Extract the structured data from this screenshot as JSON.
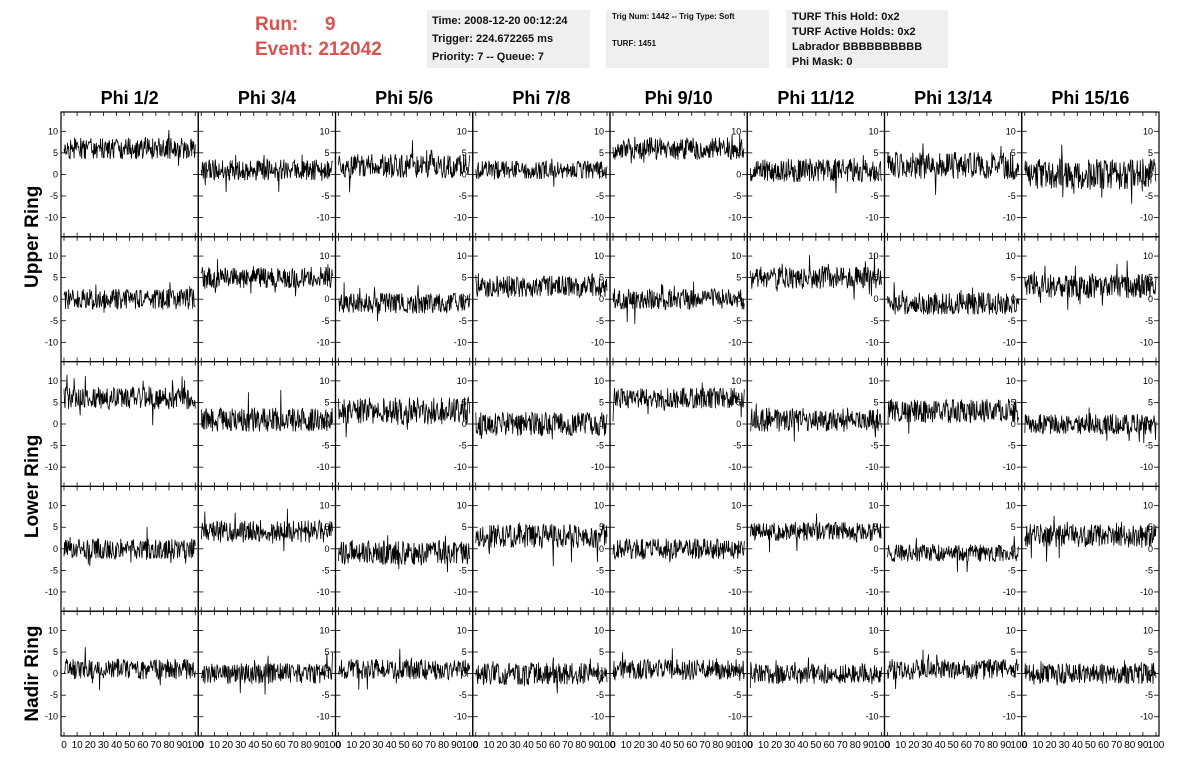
{
  "header": {
    "run_label": "Run:",
    "run_value": "9",
    "event_label": "Event:",
    "event_value": "212042",
    "time": "Time: 2008-12-20 00:12:24",
    "trigger": "Trigger: 224.672265 ms",
    "priority": "Priority: 7 -- Queue: 7",
    "trig_num": "Trig Num: 1442 -- Trig Type: Soft",
    "turf": "TURF: 1451",
    "turf_this_hold": "TURF This Hold: 0x2",
    "turf_active_holds": "TURF Active Holds: 0x2",
    "labrador": "Labrador BBBBBBBBBB",
    "phi_mask": "Phi Mask: 0"
  },
  "colors": {
    "run_event": "#d9534f",
    "box_bg": "#efefef",
    "trace": "#000000"
  },
  "chart_data": {
    "type": "line",
    "columns": [
      "Phi 1/2",
      "Phi 3/4",
      "Phi 5/6",
      "Phi 7/8",
      "Phi 9/10",
      "Phi 11/12",
      "Phi 13/14",
      "Phi 15/16"
    ],
    "ring_labels": [
      "Upper Ring",
      "Lower Ring",
      "Nadir Ring"
    ],
    "rows": 5,
    "xlim": [
      0,
      100
    ],
    "ylim": [
      -14,
      14
    ],
    "yticks": [
      -10,
      -5,
      0,
      5,
      10
    ],
    "xticks": [
      0,
      10,
      20,
      30,
      40,
      50,
      60,
      70,
      80,
      90,
      100
    ],
    "xtick_labels": [
      "0",
      "10",
      "20",
      "30",
      "40",
      "50",
      "60",
      "70",
      "80",
      "90",
      "100"
    ],
    "points_per_trace": 260,
    "traces": [
      {
        "row": 0,
        "col": 0,
        "mean": 6,
        "amp": 2.5,
        "seed": 11
      },
      {
        "row": 0,
        "col": 1,
        "mean": 1,
        "amp": 2.5,
        "seed": 12
      },
      {
        "row": 0,
        "col": 2,
        "mean": 2,
        "amp": 2.8,
        "seed": 13
      },
      {
        "row": 0,
        "col": 3,
        "mean": 1,
        "amp": 2.2,
        "seed": 14
      },
      {
        "row": 0,
        "col": 4,
        "mean": 6,
        "amp": 2.6,
        "seed": 15
      },
      {
        "row": 0,
        "col": 5,
        "mean": 1,
        "amp": 2.8,
        "seed": 16
      },
      {
        "row": 0,
        "col": 6,
        "mean": 2,
        "amp": 3.2,
        "seed": 17
      },
      {
        "row": 0,
        "col": 7,
        "mean": 0,
        "amp": 3.6,
        "seed": 18
      },
      {
        "row": 1,
        "col": 0,
        "mean": 0,
        "amp": 2.4,
        "seed": 21
      },
      {
        "row": 1,
        "col": 1,
        "mean": 5,
        "amp": 2.5,
        "seed": 22
      },
      {
        "row": 1,
        "col": 2,
        "mean": -1,
        "amp": 2.4,
        "seed": 23
      },
      {
        "row": 1,
        "col": 3,
        "mean": 3,
        "amp": 2.6,
        "seed": 24
      },
      {
        "row": 1,
        "col": 4,
        "mean": 0,
        "amp": 2.4,
        "seed": 25
      },
      {
        "row": 1,
        "col": 5,
        "mean": 5,
        "amp": 2.6,
        "seed": 26
      },
      {
        "row": 1,
        "col": 6,
        "mean": -1,
        "amp": 2.6,
        "seed": 27
      },
      {
        "row": 1,
        "col": 7,
        "mean": 3,
        "amp": 2.8,
        "seed": 28
      },
      {
        "row": 2,
        "col": 0,
        "mean": 6,
        "amp": 2.6,
        "seed": 31
      },
      {
        "row": 2,
        "col": 1,
        "mean": 1,
        "amp": 2.8,
        "seed": 32
      },
      {
        "row": 2,
        "col": 2,
        "mean": 3,
        "amp": 3.2,
        "seed": 33
      },
      {
        "row": 2,
        "col": 3,
        "mean": 0,
        "amp": 2.8,
        "seed": 34
      },
      {
        "row": 2,
        "col": 4,
        "mean": 6,
        "amp": 2.4,
        "seed": 35
      },
      {
        "row": 2,
        "col": 5,
        "mean": 1,
        "amp": 2.8,
        "seed": 36
      },
      {
        "row": 2,
        "col": 6,
        "mean": 3,
        "amp": 2.8,
        "seed": 37
      },
      {
        "row": 2,
        "col": 7,
        "mean": 0,
        "amp": 2.4,
        "seed": 38
      },
      {
        "row": 3,
        "col": 0,
        "mean": 0,
        "amp": 2.4,
        "seed": 41
      },
      {
        "row": 3,
        "col": 1,
        "mean": 4,
        "amp": 2.6,
        "seed": 42
      },
      {
        "row": 3,
        "col": 2,
        "mean": -1,
        "amp": 2.8,
        "seed": 43
      },
      {
        "row": 3,
        "col": 3,
        "mean": 3,
        "amp": 2.8,
        "seed": 44
      },
      {
        "row": 3,
        "col": 4,
        "mean": 0,
        "amp": 2.4,
        "seed": 45
      },
      {
        "row": 3,
        "col": 5,
        "mean": 4,
        "amp": 2.2,
        "seed": 46
      },
      {
        "row": 3,
        "col": 6,
        "mean": -1,
        "amp": 2.0,
        "seed": 47
      },
      {
        "row": 3,
        "col": 7,
        "mean": 3,
        "amp": 2.8,
        "seed": 48
      },
      {
        "row": 4,
        "col": 0,
        "mean": 1,
        "amp": 2.4,
        "seed": 51
      },
      {
        "row": 4,
        "col": 1,
        "mean": 0,
        "amp": 2.4,
        "seed": 52
      },
      {
        "row": 4,
        "col": 2,
        "mean": 1,
        "amp": 2.4,
        "seed": 53
      },
      {
        "row": 4,
        "col": 3,
        "mean": 0,
        "amp": 2.6,
        "seed": 54
      },
      {
        "row": 4,
        "col": 4,
        "mean": 1,
        "amp": 2.4,
        "seed": 55
      },
      {
        "row": 4,
        "col": 5,
        "mean": 0,
        "amp": 2.4,
        "seed": 56
      },
      {
        "row": 4,
        "col": 6,
        "mean": 1,
        "amp": 2.4,
        "seed": 57
      },
      {
        "row": 4,
        "col": 7,
        "mean": 0,
        "amp": 2.4,
        "seed": 58
      }
    ]
  }
}
